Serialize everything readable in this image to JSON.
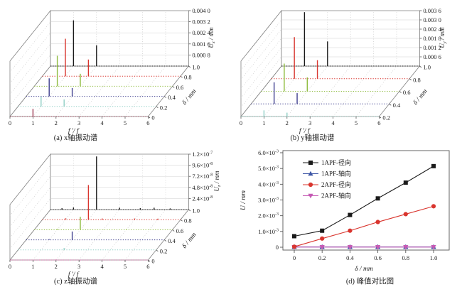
{
  "page": {
    "background": "#ffffff"
  },
  "chart_data": [
    {
      "id": "a",
      "type": "waterfall3d",
      "caption": "(a) x轴振动谱",
      "xlabel": "f ′/ f",
      "x_range": [
        0,
        6
      ],
      "x_ticks": [
        "0",
        "1",
        "2",
        "3",
        "4",
        "5",
        "6"
      ],
      "depth_label": "δ / mm",
      "depth_range": [
        0,
        1.0
      ],
      "depth_ticks": [
        "0",
        "0.2",
        "0.4",
        "0.6",
        "0.8",
        "1.0"
      ],
      "zlabel": "U_x / mm",
      "z_max": 0.004,
      "z_ticks": [
        {
          "v": 0.0008,
          "label": "0.000 8"
        },
        {
          "v": 0.0016,
          "label": "0.001 6"
        },
        {
          "v": 0.0024,
          "label": "0.002 4"
        },
        {
          "v": 0.0032,
          "label": "0.003 2"
        },
        {
          "v": 0.004,
          "label": "0.004 0"
        }
      ],
      "series": [
        {
          "delta": 0,
          "color": "#9c3a52",
          "peaks": [
            [
              1,
              0.00055
            ]
          ]
        },
        {
          "delta": 0.2,
          "color": "#8fcfc5",
          "peaks": [
            [
              1,
              0.0007
            ],
            [
              2,
              0.0005
            ]
          ]
        },
        {
          "delta": 0.4,
          "color": "#3f3f8f",
          "peaks": [
            [
              1,
              0.0013
            ],
            [
              2,
              0.0006
            ]
          ]
        },
        {
          "delta": 0.6,
          "color": "#8fbc3f",
          "peaks": [
            [
              1,
              0.0022
            ],
            [
              2,
              0.0009
            ]
          ]
        },
        {
          "delta": 0.8,
          "color": "#d9352e",
          "peaks": [
            [
              1,
              0.0027
            ],
            [
              2,
              0.0012
            ]
          ]
        },
        {
          "delta": 1.0,
          "color": "#1a1a1a",
          "peaks": [
            [
              1,
              0.0033
            ],
            [
              2,
              0.0015
            ]
          ]
        }
      ]
    },
    {
      "id": "b",
      "type": "waterfall3d",
      "caption": "(b) y轴振动谱",
      "xlabel": "f ′/ f",
      "x_range": [
        0,
        6
      ],
      "x_ticks": [
        "0",
        "1",
        "2",
        "3",
        "4",
        "5",
        "6"
      ],
      "depth_label": "δ / mm",
      "depth_range": [
        0.2,
        1.0
      ],
      "depth_ticks": [
        "0.2",
        "0.4",
        "0.6",
        "0.8",
        "1.0"
      ],
      "zlabel": "U_y / mm",
      "z_max": 0.0036,
      "z_ticks": [
        {
          "v": 0.0006,
          "label": "0.000 6"
        },
        {
          "v": 0.0012,
          "label": "0.001 2"
        },
        {
          "v": 0.0018,
          "label": "0.001 8"
        },
        {
          "v": 0.0024,
          "label": "0.002 4"
        },
        {
          "v": 0.003,
          "label": "0.003 0"
        },
        {
          "v": 0.0036,
          "label": "0.003 6"
        }
      ],
      "series": [
        {
          "delta": 0.2,
          "color": "#8fcfc5",
          "peaks": [
            [
              1,
              0.0004
            ],
            [
              2,
              0.00025
            ]
          ]
        },
        {
          "delta": 0.4,
          "color": "#3f3f8f",
          "peaks": [
            [
              1,
              0.0014
            ],
            [
              2,
              0.0007
            ]
          ]
        },
        {
          "delta": 0.6,
          "color": "#8fbc3f",
          "peaks": [
            [
              1,
              0.0018
            ],
            [
              2,
              0.0009
            ]
          ]
        },
        {
          "delta": 0.8,
          "color": "#d9352e",
          "peaks": [
            [
              1,
              0.0027
            ],
            [
              2,
              0.0012
            ]
          ]
        },
        {
          "delta": 1.0,
          "color": "#1a1a1a",
          "peaks": [
            [
              1,
              0.0035
            ],
            [
              2,
              0.0016
            ]
          ]
        }
      ]
    },
    {
      "id": "c",
      "type": "waterfall3d",
      "caption": "(c) z轴振动谱",
      "xlabel": "f ′/ f",
      "x_range": [
        0,
        6
      ],
      "x_ticks": [
        "0",
        "1",
        "2",
        "3",
        "4",
        "5",
        "6"
      ],
      "depth_label": "δ / mm",
      "depth_range": [
        0,
        1.0
      ],
      "depth_ticks": [
        "0",
        "0.2",
        "0.4",
        "0.6",
        "0.8",
        "1.0"
      ],
      "zlabel": "U_z / mm",
      "z_max": 1.2e-07,
      "z_ticks": [
        {
          "v": 2.4e-08,
          "label": "2.4×10^-8"
        },
        {
          "v": 4.8e-08,
          "label": "4.8×10^-8"
        },
        {
          "v": 7.2e-08,
          "label": "7.2×10^-8"
        },
        {
          "v": 9.6e-08,
          "label": "9.6×10^-8"
        },
        {
          "v": 1.2e-07,
          "label": "1.2×10^-7"
        }
      ],
      "series": [
        {
          "delta": 0,
          "color": "#e051a2",
          "peaks": [
            [
              2,
              1e-09
            ]
          ]
        },
        {
          "delta": 0.2,
          "color": "#8fcfc5",
          "peaks": [
            [
              2,
              4e-09
            ]
          ]
        },
        {
          "delta": 0.4,
          "color": "#3f3f8f",
          "peaks": [
            [
              2,
              1.8e-08
            ],
            [
              1,
              1.5e-09
            ]
          ]
        },
        {
          "delta": 0.6,
          "color": "#8fbc3f",
          "peaks": [
            [
              2,
              2.8e-08
            ],
            [
              1,
              2e-09
            ],
            [
              4,
              1.5e-09
            ]
          ]
        },
        {
          "delta": 0.8,
          "color": "#d9352e",
          "peaks": [
            [
              2,
              7.5e-08
            ],
            [
              1,
              3e-09
            ],
            [
              2.6,
              2.5e-09
            ],
            [
              4,
              2.5e-09
            ],
            [
              5,
              2e-09
            ]
          ]
        },
        {
          "delta": 1.0,
          "color": "#1a1a1a",
          "peaks": [
            [
              2,
              1.15e-07
            ],
            [
              0.5,
              3e-09
            ],
            [
              1,
              4.5e-09
            ],
            [
              3,
              4e-09
            ],
            [
              3.9,
              3e-09
            ],
            [
              4.5,
              4e-09
            ],
            [
              5.2,
              2.5e-09
            ]
          ]
        }
      ]
    },
    {
      "id": "d",
      "type": "line",
      "caption": "(d) 峰值对比图",
      "xlabel": "δ / mm",
      "ylabel": "U / mm",
      "x_ticks": [
        {
          "v": 0,
          "label": "0"
        },
        {
          "v": 0.2,
          "label": "0.2"
        },
        {
          "v": 0.4,
          "label": "0.4"
        },
        {
          "v": 0.6,
          "label": "0.6"
        },
        {
          "v": 0.8,
          "label": "0.8"
        },
        {
          "v": 1.0,
          "label": "1.0"
        }
      ],
      "y_ticks": [
        {
          "v": 0,
          "label": "0"
        },
        {
          "v": 0.001,
          "label": "1.0×10^-3"
        },
        {
          "v": 0.002,
          "label": "2.0×10^-3"
        },
        {
          "v": 0.003,
          "label": "3.0×10^-3"
        },
        {
          "v": 0.004,
          "label": "4.0×10^-3"
        },
        {
          "v": 0.005,
          "label": "5.0×10^-3"
        },
        {
          "v": 0.006,
          "label": "6.0×10^-3"
        }
      ],
      "x": [
        0,
        0.2,
        0.4,
        0.6,
        0.8,
        1.0
      ],
      "series": [
        {
          "name": "1APF-径向",
          "color": "#1a1a1a",
          "marker": "square",
          "values": [
            0.0007,
            0.00105,
            0.00205,
            0.0031,
            0.0041,
            0.00515
          ]
        },
        {
          "name": "1APF-轴向",
          "color": "#3c55a5",
          "marker": "triangle-up",
          "values": [
            2e-05,
            2e-05,
            2e-05,
            2e-05,
            2e-05,
            2e-05
          ]
        },
        {
          "name": "2APF-径向",
          "color": "#d9352e",
          "marker": "circle",
          "values": [
            3e-05,
            0.00055,
            0.00105,
            0.0016,
            0.0021,
            0.0026
          ]
        },
        {
          "name": "2APF-轴向",
          "color": "#c55ab4",
          "marker": "triangle-down",
          "values": [
            1e-05,
            1e-05,
            1e-05,
            1e-05,
            1e-05,
            1e-05
          ]
        }
      ],
      "legend_position": "upper-left-inside"
    }
  ]
}
